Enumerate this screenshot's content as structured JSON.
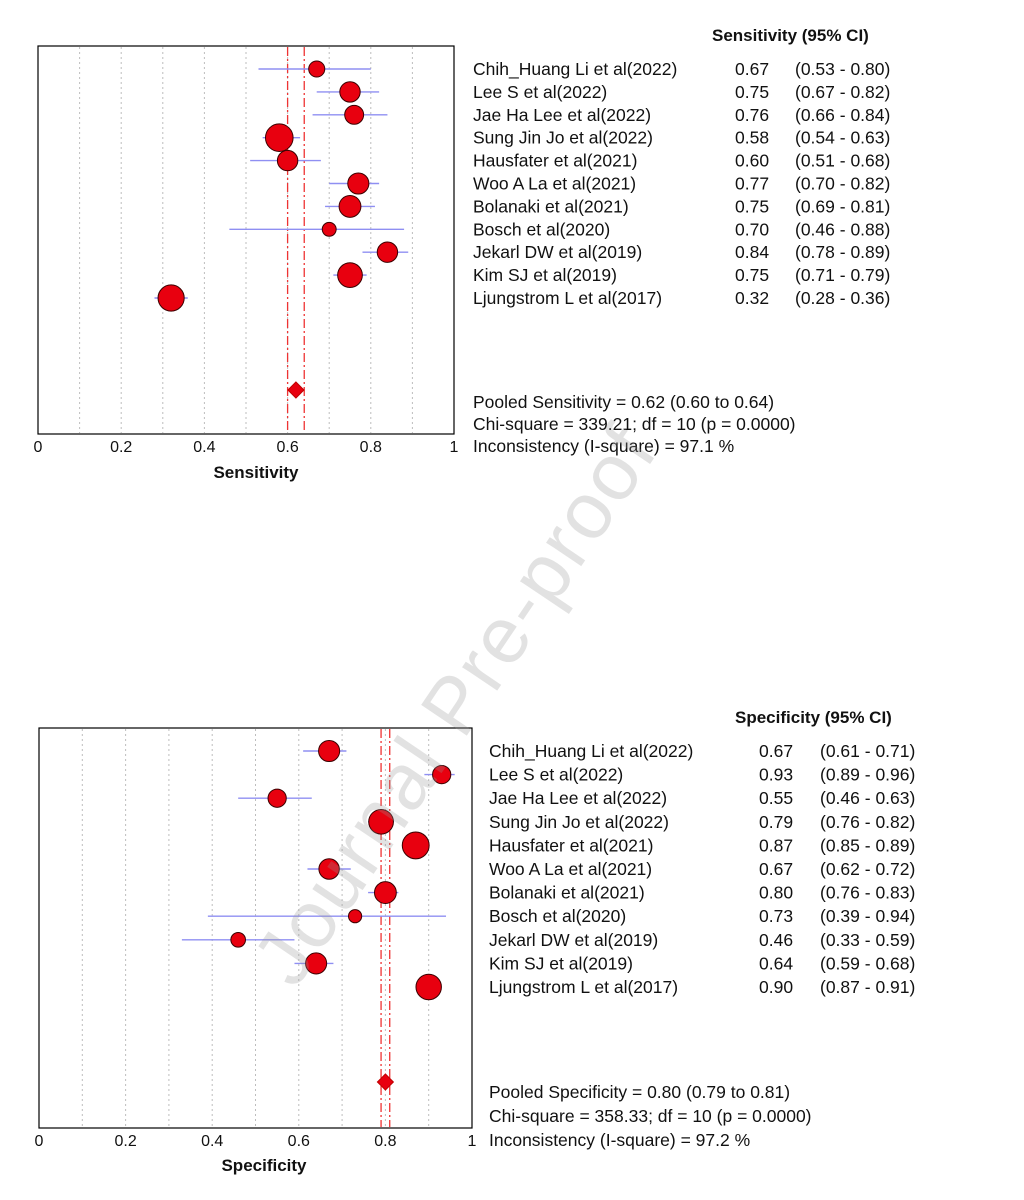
{
  "watermark": "Journal Pre-proof",
  "colors": {
    "marker_fill": "#e8000f",
    "marker_stroke": "#3a0000",
    "ci_line": "#8f8ff2",
    "pooled_line": "#ee3333",
    "grid": "#bdbdbd",
    "frame": "#000000"
  },
  "chart_data": [
    {
      "type": "forest",
      "header": "Sensitivity (95% CI)",
      "xlabel": "Sensitivity",
      "xlim": [
        0,
        1
      ],
      "ticks": [
        "0",
        "0.2",
        "0.4",
        "0.6",
        "0.8",
        "1"
      ],
      "grid": true,
      "studies": [
        {
          "name": "Chih_Huang Li et al(2022)",
          "value": "0.67",
          "ci": "(0.53 - 0.80)",
          "est": 0.67,
          "lo": 0.53,
          "hi": 0.8,
          "weight": 0.7
        },
        {
          "name": "Lee S et al(2022)",
          "value": "0.75",
          "ci": "(0.67 - 0.82)",
          "est": 0.75,
          "lo": 0.67,
          "hi": 0.82,
          "weight": 1.0
        },
        {
          "name": "Jae Ha Lee et al(2022)",
          "value": "0.76",
          "ci": "(0.66 - 0.84)",
          "est": 0.76,
          "lo": 0.66,
          "hi": 0.84,
          "weight": 0.9
        },
        {
          "name": "Sung Jin Jo et al(2022)",
          "value": "0.58",
          "ci": "(0.54 - 0.63)",
          "est": 0.58,
          "lo": 0.54,
          "hi": 0.63,
          "weight": 1.5
        },
        {
          "name": "Hausfater et al(2021)",
          "value": "0.60",
          "ci": "(0.51 - 0.68)",
          "est": 0.6,
          "lo": 0.51,
          "hi": 0.68,
          "weight": 1.0
        },
        {
          "name": "Woo A La et al(2021)",
          "value": "0.77",
          "ci": "(0.70 - 0.82)",
          "est": 0.77,
          "lo": 0.7,
          "hi": 0.82,
          "weight": 1.05
        },
        {
          "name": "Bolanaki et al(2021)",
          "value": "0.75",
          "ci": "(0.69 - 0.81)",
          "est": 0.75,
          "lo": 0.69,
          "hi": 0.81,
          "weight": 1.1
        },
        {
          "name": "Bosch et al(2020)",
          "value": "0.70",
          "ci": "(0.46 - 0.88)",
          "est": 0.7,
          "lo": 0.46,
          "hi": 0.88,
          "weight": 0.55
        },
        {
          "name": "Jekarl DW et al(2019)",
          "value": "0.84",
          "ci": "(0.78 - 0.89)",
          "est": 0.84,
          "lo": 0.78,
          "hi": 0.89,
          "weight": 1.0
        },
        {
          "name": "Kim SJ et al(2019)",
          "value": "0.75",
          "ci": "(0.71 - 0.79)",
          "est": 0.75,
          "lo": 0.71,
          "hi": 0.79,
          "weight": 1.3
        },
        {
          "name": "Ljungstrom L et al(2017)",
          "value": "0.32",
          "ci": "(0.28 - 0.36)",
          "est": 0.32,
          "lo": 0.28,
          "hi": 0.36,
          "weight": 1.4
        }
      ],
      "pooled": {
        "est": 0.62,
        "lo": 0.6,
        "hi": 0.64
      },
      "pooled_text": "Pooled Sensitivity = 0.62 (0.60 to 0.64)",
      "chi_text": "Chi-square = 339.21; df =  10 (p = 0.0000)",
      "i2_text": "Inconsistency (I-square) = 97.1 %"
    },
    {
      "type": "forest",
      "header": "Specificity (95% CI)",
      "xlabel": "Specificity",
      "xlim": [
        0,
        1
      ],
      "ticks": [
        "0",
        "0.2",
        "0.4",
        "0.6",
        "0.8",
        "1"
      ],
      "grid": true,
      "studies": [
        {
          "name": "Chih_Huang Li et al(2022)",
          "value": "0.67",
          "ci": "(0.61 - 0.71)",
          "est": 0.67,
          "lo": 0.61,
          "hi": 0.71,
          "weight": 1.05
        },
        {
          "name": "Lee S et al(2022)",
          "value": "0.93",
          "ci": "(0.89 - 0.96)",
          "est": 0.93,
          "lo": 0.89,
          "hi": 0.96,
          "weight": 0.85
        },
        {
          "name": "Jae Ha Lee et al(2022)",
          "value": "0.55",
          "ci": "(0.46 - 0.63)",
          "est": 0.55,
          "lo": 0.46,
          "hi": 0.63,
          "weight": 0.85
        },
        {
          "name": "Sung Jin Jo et al(2022)",
          "value": "0.79",
          "ci": "(0.76 - 0.82)",
          "est": 0.79,
          "lo": 0.76,
          "hi": 0.82,
          "weight": 1.3
        },
        {
          "name": "Hausfater et al(2021)",
          "value": "0.87",
          "ci": "(0.85 - 0.89)",
          "est": 0.87,
          "lo": 0.85,
          "hi": 0.89,
          "weight": 1.45
        },
        {
          "name": "Woo A La et al(2021)",
          "value": "0.67",
          "ci": "(0.62 - 0.72)",
          "est": 0.67,
          "lo": 0.62,
          "hi": 0.72,
          "weight": 1.0
        },
        {
          "name": "Bolanaki et al(2021)",
          "value": "0.80",
          "ci": "(0.76 - 0.83)",
          "est": 0.8,
          "lo": 0.76,
          "hi": 0.83,
          "weight": 1.1
        },
        {
          "name": "Bosch et al(2020)",
          "value": "0.73",
          "ci": "(0.39 - 0.94)",
          "est": 0.73,
          "lo": 0.39,
          "hi": 0.94,
          "weight": 0.5
        },
        {
          "name": "Jekarl DW et al(2019)",
          "value": "0.46",
          "ci": "(0.33 - 0.59)",
          "est": 0.46,
          "lo": 0.33,
          "hi": 0.59,
          "weight": 0.6
        },
        {
          "name": "Kim SJ et al(2019)",
          "value": "0.64",
          "ci": "(0.59 - 0.68)",
          "est": 0.64,
          "lo": 0.59,
          "hi": 0.68,
          "weight": 1.05
        },
        {
          "name": "Ljungstrom L et al(2017)",
          "value": "0.90",
          "ci": "(0.87 - 0.91)",
          "est": 0.9,
          "lo": 0.87,
          "hi": 0.91,
          "weight": 1.35
        }
      ],
      "pooled": {
        "est": 0.8,
        "lo": 0.79,
        "hi": 0.81
      },
      "pooled_text": "Pooled Specificity = 0.80 (0.79 to 0.81)",
      "chi_text": "Chi-square = 358.33; df =  10 (p = 0.0000)",
      "i2_text": "Inconsistency (I-square) = 97.2 %"
    }
  ]
}
